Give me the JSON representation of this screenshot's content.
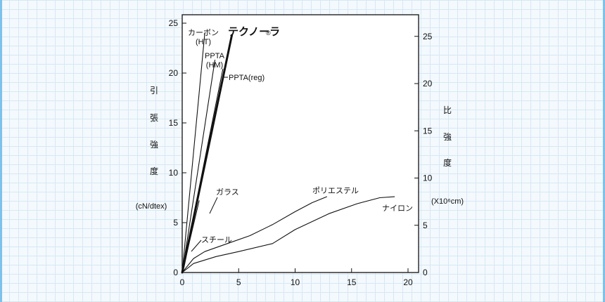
{
  "chart_data": {
    "type": "line",
    "x": {
      "range": [
        0,
        20
      ],
      "ticks": [
        0,
        5,
        10,
        15,
        20
      ]
    },
    "y_left": {
      "range": [
        0,
        25
      ],
      "ticks": [
        0,
        5,
        10,
        15,
        20,
        25
      ],
      "label_chars": [
        "引",
        "張",
        "強",
        "度"
      ],
      "unit": "(cN/dtex)"
    },
    "y_right": {
      "range": [
        0,
        26.2
      ],
      "ticks": [
        0,
        5,
        10,
        15,
        20,
        25
      ],
      "label_chars": [
        "比",
        "強",
        "度"
      ],
      "unit": "(X10⁶cm)"
    },
    "series": [
      {
        "name": "カーボン\n(HT)",
        "points": [
          [
            0,
            0
          ],
          [
            2,
            24
          ]
        ],
        "bold": false
      },
      {
        "name": "PPTA\n(HM)",
        "points": [
          [
            0,
            0
          ],
          [
            2.9,
            21.3
          ]
        ],
        "bold": false
      },
      {
        "name": "PPTA(reg)",
        "points": [
          [
            0,
            0
          ],
          [
            3.6,
            20.4
          ]
        ],
        "bold": false
      },
      {
        "name": "テクノーラ",
        "points": [
          [
            0,
            0
          ],
          [
            4.4,
            23.8
          ]
        ],
        "bold": true
      },
      {
        "name": "ガラス",
        "points": [
          [
            0,
            0
          ],
          [
            1.5,
            7.2
          ]
        ],
        "bold": false
      },
      {
        "name": "スチール",
        "points": [
          [
            0,
            0
          ],
          [
            0.5,
            2.5
          ]
        ],
        "bold": false
      },
      {
        "name": "ポリエステル",
        "points": [
          [
            0,
            0
          ],
          [
            1,
            1.4
          ],
          [
            2,
            2.1
          ],
          [
            4,
            2.9
          ],
          [
            6,
            3.7
          ],
          [
            8,
            4.8
          ],
          [
            10,
            6.1
          ],
          [
            11.5,
            7.0
          ],
          [
            12.8,
            7.6
          ]
        ],
        "bold": false
      },
      {
        "name": "ナイロン",
        "points": [
          [
            0,
            0
          ],
          [
            1,
            0.9
          ],
          [
            3,
            1.6
          ],
          [
            5,
            2.1
          ],
          [
            8,
            2.9
          ],
          [
            10,
            4.3
          ],
          [
            13,
            5.9
          ],
          [
            15.5,
            6.9
          ],
          [
            17.5,
            7.5
          ],
          [
            18.8,
            7.6
          ]
        ],
        "bold": false
      }
    ],
    "labels": {
      "carbon": "カーボン\n(HT)",
      "ppta_hm": "PPTA\n(HM)",
      "ppta_reg": "PPTA(reg)",
      "technora": "テクノーラ",
      "technora_mark": "®",
      "glass": "ガラス",
      "steel": "スチール",
      "polyester": "ポリエステル",
      "nylon": "ナイロン"
    },
    "grid": false
  }
}
